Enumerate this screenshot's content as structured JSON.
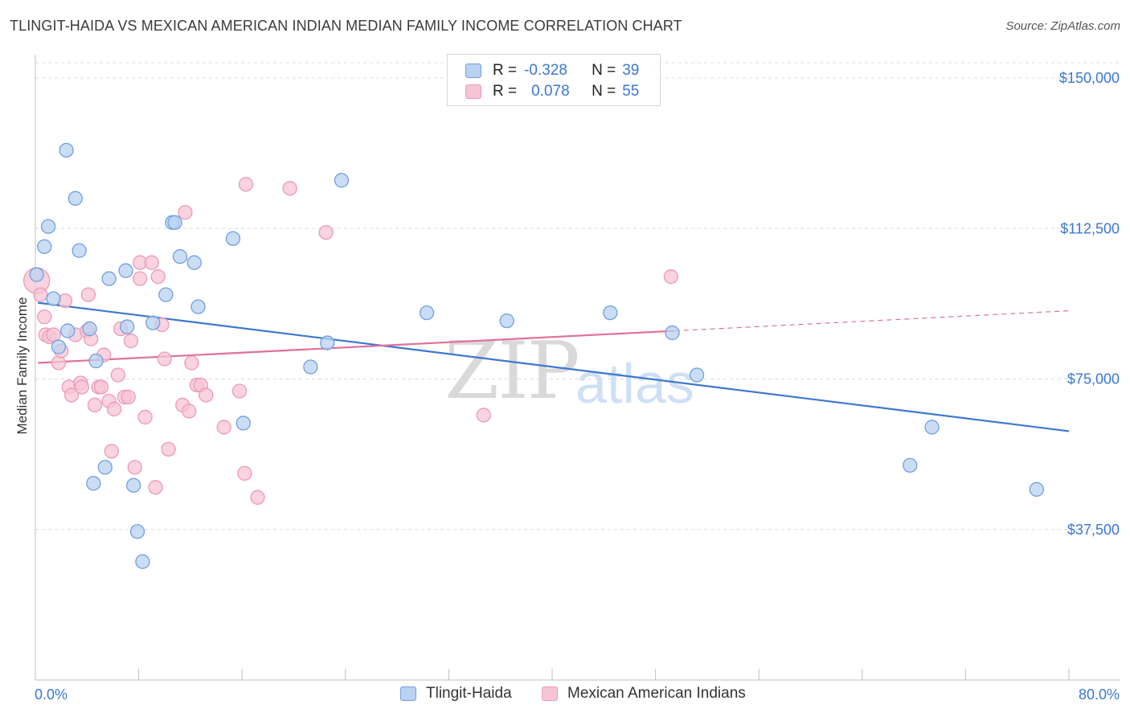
{
  "title": "TLINGIT-HAIDA VS MEXICAN AMERICAN INDIAN MEDIAN FAMILY INCOME CORRELATION CHART",
  "source": "Source: ZipAtlas.com",
  "watermark": {
    "zip": "ZIP",
    "atlas": "atlas"
  },
  "legend": {
    "rows": [
      {
        "r_label": "R =",
        "r_value": "-0.328",
        "n_label": "N =",
        "n_value": "39"
      },
      {
        "r_label": "R =",
        "r_value": "0.078",
        "n_label": "N =",
        "n_value": "55"
      }
    ]
  },
  "colors": {
    "blue": "#3b78d0",
    "blue_fill": "#b9d2f2",
    "blue_stroke": "#6f9fe0",
    "pink": "#e0709a",
    "pink_fill": "#f7c4d4",
    "pink_stroke": "#ec9ab8",
    "grid": "#dcdcdc"
  },
  "chart_data": {
    "type": "scatter",
    "title": "TLINGIT-HAIDA VS MEXICAN AMERICAN INDIAN MEDIAN FAMILY INCOME CORRELATION CHART",
    "xlabel": "",
    "ylabel": "Median Family Income",
    "xlim": [
      0,
      80
    ],
    "ylim": [
      0,
      155000
    ],
    "x_tick_labels": [
      "0.0%",
      "80.0%"
    ],
    "y_ticks": [
      37500,
      75000,
      112500,
      150000
    ],
    "y_tick_labels": [
      "$37,500",
      "$75,000",
      "$112,500",
      "$150,000"
    ],
    "series": [
      {
        "name": "Tlingit-Haida",
        "color": "blue",
        "trend": {
          "x0": 0.2,
          "y0": 94000,
          "x1": 80,
          "y1": 62000
        },
        "points": [
          [
            0.1,
            101000
          ],
          [
            0.7,
            108000
          ],
          [
            1.0,
            113000
          ],
          [
            1.4,
            95000
          ],
          [
            1.8,
            83000
          ],
          [
            2.4,
            132000
          ],
          [
            2.5,
            87000
          ],
          [
            3.1,
            120000
          ],
          [
            3.4,
            107000
          ],
          [
            4.2,
            87500
          ],
          [
            4.5,
            49000
          ],
          [
            4.7,
            79500
          ],
          [
            5.4,
            53000
          ],
          [
            5.7,
            100000
          ],
          [
            7.0,
            102000
          ],
          [
            7.1,
            88000
          ],
          [
            7.6,
            48500
          ],
          [
            7.9,
            37000
          ],
          [
            8.3,
            29500
          ],
          [
            9.1,
            89000
          ],
          [
            10.1,
            96000
          ],
          [
            10.6,
            114000
          ],
          [
            10.8,
            114000
          ],
          [
            11.2,
            105500
          ],
          [
            12.3,
            104000
          ],
          [
            12.6,
            93000
          ],
          [
            15.3,
            110000
          ],
          [
            16.1,
            64000
          ],
          [
            21.3,
            78000
          ],
          [
            22.6,
            84000
          ],
          [
            23.7,
            124500
          ],
          [
            30.3,
            91500
          ],
          [
            36.5,
            89500
          ],
          [
            44.5,
            91500
          ],
          [
            49.3,
            86500
          ],
          [
            51.2,
            76000
          ],
          [
            67.7,
            53500
          ],
          [
            69.4,
            63000
          ],
          [
            77.5,
            47500
          ]
        ]
      },
      {
        "name": "Mexican American Indians",
        "color": "pink",
        "trend": {
          "x0": 0.2,
          "y0": 79000,
          "x1": 49.5,
          "y1": 87000
        },
        "trend_dashed": {
          "x0": 49.5,
          "y0": 87000,
          "x1": 80,
          "y1": 92000
        },
        "points": [
          [
            0.1,
            99500
          ],
          [
            0.4,
            96000
          ],
          [
            0.7,
            90500
          ],
          [
            0.8,
            86000
          ],
          [
            1.1,
            85500
          ],
          [
            1.4,
            86000
          ],
          [
            1.8,
            79000
          ],
          [
            2.0,
            82000
          ],
          [
            2.3,
            94500
          ],
          [
            2.6,
            73000
          ],
          [
            2.8,
            71000
          ],
          [
            3.1,
            86000
          ],
          [
            3.5,
            74000
          ],
          [
            3.6,
            73000
          ],
          [
            4.0,
            87000
          ],
          [
            4.1,
            96000
          ],
          [
            4.3,
            85000
          ],
          [
            4.6,
            68500
          ],
          [
            4.9,
            73000
          ],
          [
            5.1,
            73000
          ],
          [
            5.3,
            81000
          ],
          [
            5.7,
            69500
          ],
          [
            5.9,
            57000
          ],
          [
            6.1,
            67500
          ],
          [
            6.4,
            76000
          ],
          [
            6.6,
            87500
          ],
          [
            6.9,
            70500
          ],
          [
            7.2,
            70500
          ],
          [
            7.4,
            84500
          ],
          [
            7.7,
            53000
          ],
          [
            8.1,
            100000
          ],
          [
            8.1,
            104000
          ],
          [
            8.5,
            65500
          ],
          [
            9.0,
            104000
          ],
          [
            9.3,
            48000
          ],
          [
            9.5,
            100500
          ],
          [
            9.8,
            88500
          ],
          [
            10.0,
            80000
          ],
          [
            10.3,
            57500
          ],
          [
            11.4,
            68500
          ],
          [
            11.6,
            116500
          ],
          [
            11.9,
            67000
          ],
          [
            12.1,
            79000
          ],
          [
            12.5,
            73500
          ],
          [
            12.8,
            73500
          ],
          [
            13.2,
            71000
          ],
          [
            14.6,
            63000
          ],
          [
            15.8,
            72000
          ],
          [
            16.2,
            51500
          ],
          [
            16.3,
            123500
          ],
          [
            17.2,
            45500
          ],
          [
            19.7,
            122500
          ],
          [
            22.5,
            111500
          ],
          [
            34.7,
            66000
          ],
          [
            49.2,
            100500
          ]
        ]
      }
    ]
  },
  "bottom_legend": [
    {
      "label": "Tlingit-Haida"
    },
    {
      "label": "Mexican American Indians"
    }
  ]
}
